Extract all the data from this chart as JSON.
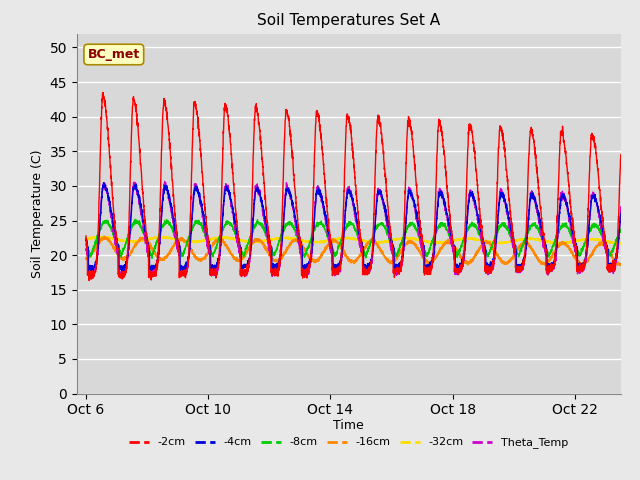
{
  "title": "Soil Temperatures Set A",
  "xlabel": "Time",
  "ylabel": "Soil Temperature (C)",
  "ylim": [
    0,
    52
  ],
  "yticks": [
    0,
    5,
    10,
    15,
    20,
    25,
    30,
    35,
    40,
    45,
    50
  ],
  "x_tick_positions": [
    0,
    4,
    8,
    12,
    16
  ],
  "x_tick_labels": [
    "Oct 6",
    "Oct 10",
    "Oct 14",
    "Oct 18",
    "Oct 22"
  ],
  "annotation_text": "BC_met",
  "colors": {
    "2cm": "#ff0000",
    "4cm": "#0000dd",
    "8cm": "#00cc00",
    "16cm": "#ff8800",
    "32cm": "#ffdd00",
    "theta": "#cc00cc"
  },
  "legend_labels": [
    "-2cm",
    "-4cm",
    "-8cm",
    "-16cm",
    "-32cm",
    "Theta_Temp"
  ],
  "background_color": "#e8e8e8",
  "plot_bg": "#d8d8d8",
  "grid_color": "#ffffff",
  "figsize": [
    6.4,
    4.8
  ],
  "dpi": 100
}
